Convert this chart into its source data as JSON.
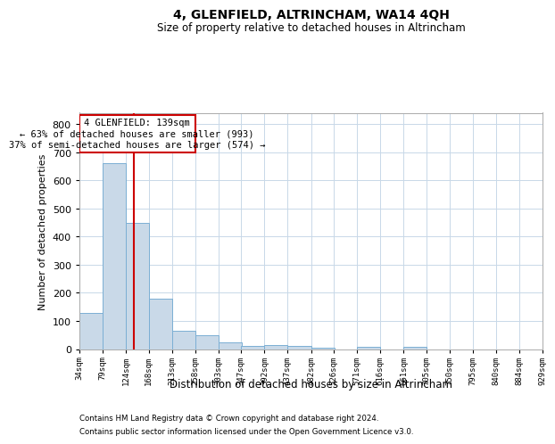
{
  "title": "4, GLENFIELD, ALTRINCHAM, WA14 4QH",
  "subtitle": "Size of property relative to detached houses in Altrincham",
  "xlabel": "Distribution of detached houses by size in Altrincham",
  "ylabel": "Number of detached properties",
  "footnote1": "Contains HM Land Registry data © Crown copyright and database right 2024.",
  "footnote2": "Contains public sector information licensed under the Open Government Licence v3.0.",
  "annotation_line1": "4 GLENFIELD: 139sqm",
  "annotation_line2": "← 63% of detached houses are smaller (993)",
  "annotation_line3": "37% of semi-detached houses are larger (574) →",
  "property_size": 139,
  "bar_color": "#c9d9e8",
  "bar_edge_color": "#7bafd4",
  "marker_color": "#cc0000",
  "bin_edges": [
    34,
    79,
    124,
    168,
    213,
    258,
    303,
    347,
    392,
    437,
    482,
    526,
    571,
    616,
    661,
    705,
    750,
    795,
    840,
    884,
    929
  ],
  "bin_labels": [
    "34sqm",
    "79sqm",
    "124sqm",
    "168sqm",
    "213sqm",
    "258sqm",
    "303sqm",
    "347sqm",
    "392sqm",
    "437sqm",
    "482sqm",
    "526sqm",
    "571sqm",
    "616sqm",
    "661sqm",
    "705sqm",
    "750sqm",
    "795sqm",
    "840sqm",
    "884sqm",
    "929sqm"
  ],
  "counts": [
    128,
    660,
    450,
    180,
    65,
    50,
    25,
    12,
    14,
    12,
    6,
    0,
    8,
    0,
    8,
    0,
    0,
    0,
    0,
    0
  ],
  "ylim": [
    0,
    840
  ],
  "yticks": [
    0,
    100,
    200,
    300,
    400,
    500,
    600,
    700,
    800
  ],
  "background_color": "#ffffff",
  "grid_color": "#c8d8e8"
}
